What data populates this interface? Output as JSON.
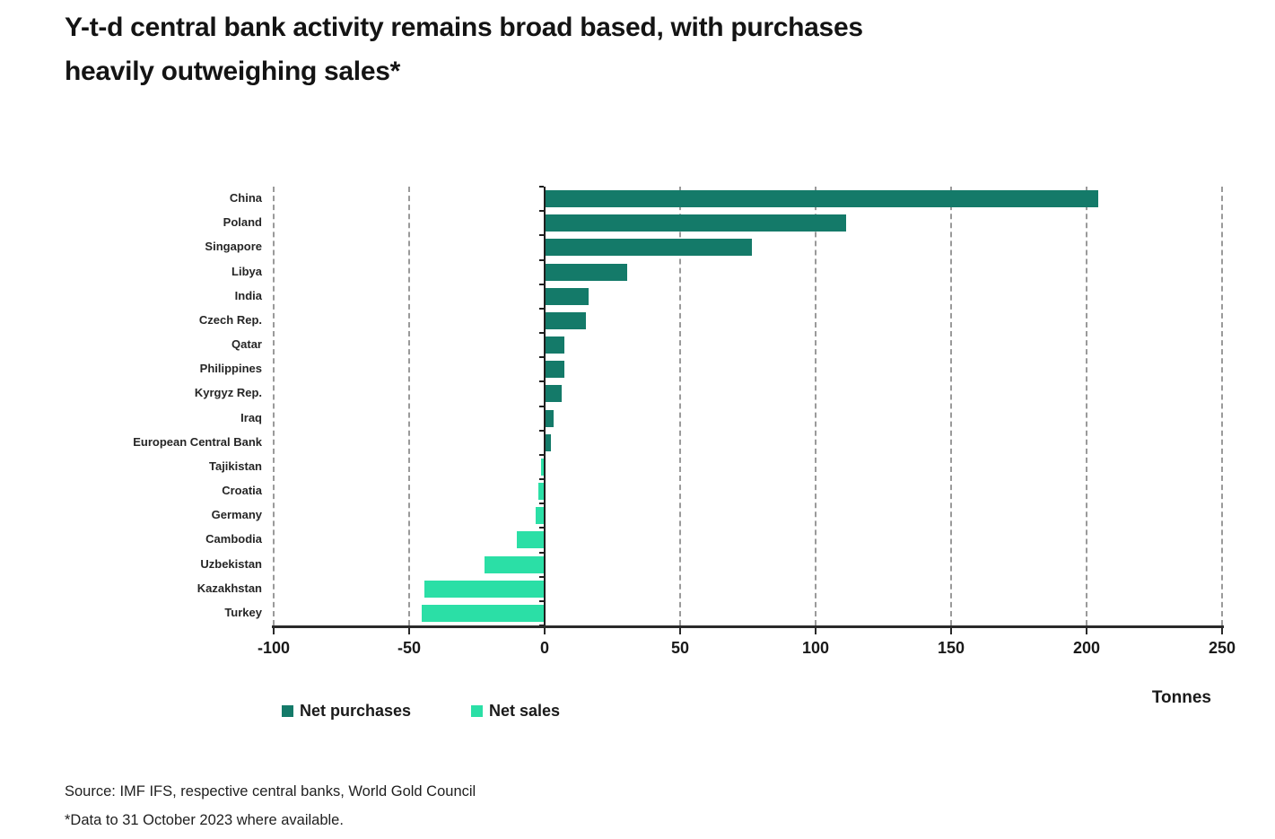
{
  "title": {
    "line1": "Y-t-d central bank activity remains broad based, with purchases",
    "line2": "heavily outweighing sales*"
  },
  "chart_data": {
    "type": "bar",
    "orientation": "horizontal",
    "unit": "tonnes",
    "xlabel": "Tonnes",
    "xlim": [
      -100,
      250
    ],
    "xticks": [
      -100,
      -50,
      0,
      50,
      100,
      150,
      200,
      250
    ],
    "grid": "dashed vertical gridlines at every tick except 0; solid zero axis",
    "legend_position": "bottom-left",
    "categories": [
      "China",
      "Poland",
      "Singapore",
      "Libya",
      "India",
      "Czech Rep.",
      "Qatar",
      "Philippines",
      "Kyrgyz Rep.",
      "Iraq",
      "European Central Bank",
      "Tajikistan",
      "Croatia",
      "Germany",
      "Cambodia",
      "Uzbekistan",
      "Kazakhstan",
      "Turkey"
    ],
    "values": [
      204,
      111,
      76,
      30,
      16,
      15,
      7,
      7,
      6,
      3,
      2,
      -1,
      -2,
      -3,
      -10,
      -22,
      -44,
      -45
    ],
    "series_rule": "positive values = Net purchases (dark teal), negative values = Net sales (mint)",
    "legend": [
      {
        "label": "Net purchases",
        "color": "#147A69"
      },
      {
        "label": "Net sales",
        "color": "#2BDFA6"
      }
    ],
    "axis_color": "#2a2a2a",
    "grid_color": "#9a9a9a"
  },
  "footer": {
    "source": "Source: IMF IFS, respective central banks, World Gold Council",
    "note": "*Data to 31 October 2023 where available."
  }
}
